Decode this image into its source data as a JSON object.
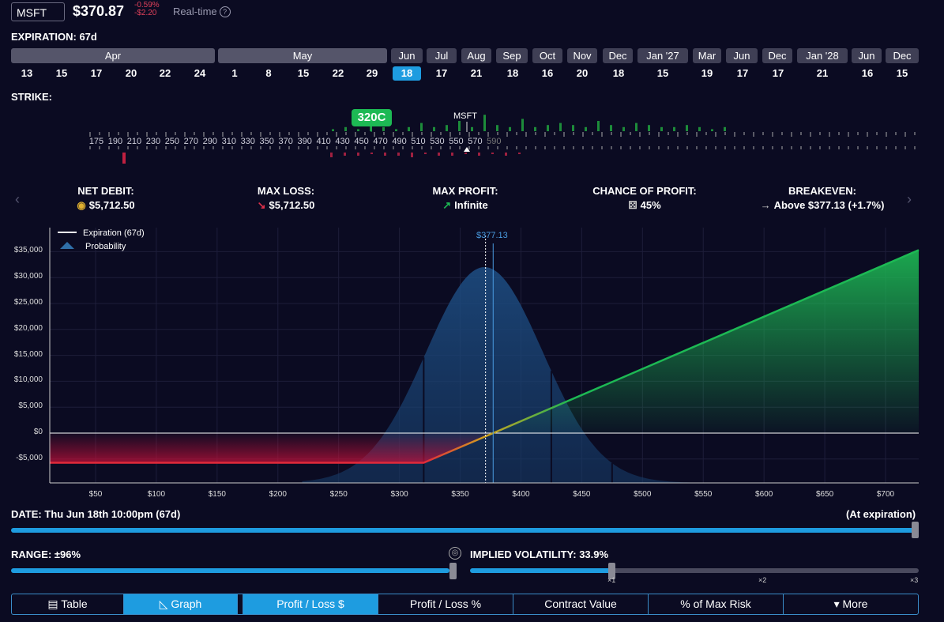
{
  "header": {
    "ticker": "MSFT",
    "price": "$370.87",
    "change_pct": "-0.59%",
    "change_abs": "-$2.20",
    "realtime": "Real-time",
    "help_icon": "?"
  },
  "expiration": {
    "label": "EXPIRATION:",
    "value": "67d"
  },
  "months": [
    "Apr",
    "May",
    "Jun",
    "Jul",
    "Aug",
    "Sep",
    "Oct",
    "Nov",
    "Dec",
    "Jan '27",
    "Mar",
    "Jun",
    "Dec",
    "Jan '28",
    "Jun",
    "Dec"
  ],
  "days": [
    "13",
    "15",
    "17",
    "20",
    "22",
    "24",
    "1",
    "8",
    "15",
    "22",
    "29",
    "18",
    "17",
    "21",
    "18",
    "16",
    "20",
    "18",
    "15",
    "19",
    "17",
    "17",
    "21",
    "16",
    "15"
  ],
  "selected_day": "18",
  "strike": {
    "label": "STRIKE:",
    "selected": "320C",
    "underlying": "MSFT",
    "ticks": [
      "175",
      "190",
      "210",
      "230",
      "250",
      "270",
      "290",
      "310",
      "330",
      "350",
      "370",
      "390",
      "410",
      "430",
      "450",
      "470",
      "490",
      "510",
      "530",
      "550",
      "570",
      "590"
    ]
  },
  "metrics": [
    {
      "label": "NET DEBIT:",
      "icon": "coins-icon",
      "glyph": "◉",
      "value": "$5,712.50"
    },
    {
      "label": "MAX LOSS:",
      "icon": "arrow-down-icon",
      "glyph": "↘",
      "value": "$5,712.50"
    },
    {
      "label": "MAX PROFIT:",
      "icon": "arrow-up-icon",
      "glyph": "↗",
      "value": "Infinite"
    },
    {
      "label": "CHANCE OF PROFIT:",
      "icon": "dice-icon",
      "glyph": "⚄",
      "value": "45%"
    },
    {
      "label": "BREAKEVEN:",
      "icon": "arrow-right-icon",
      "glyph": "→",
      "value": "Above $377.13 (+1.7%)"
    }
  ],
  "chart_data": {
    "type": "line",
    "legend": [
      "Expiration (67d)",
      "Probability"
    ],
    "breakeven_label": "$377.13",
    "ylabels": [
      "$35,000",
      "$30,000",
      "$25,000",
      "$20,000",
      "$15,000",
      "$10,000",
      "$5,000",
      "$0",
      "-$5,000"
    ],
    "xlabels": [
      "$50",
      "$100",
      "$150",
      "$200",
      "$250",
      "$300",
      "$350",
      "$400",
      "$450",
      "$500",
      "$550",
      "$600",
      "$650",
      "$700"
    ],
    "series": [
      {
        "name": "Expiration (67d)",
        "x": [
          0,
          320,
          377.13,
          730
        ],
        "y": [
          -5712.5,
          -5712.5,
          0,
          35300
        ]
      }
    ],
    "xlim": [
      30,
      730
    ],
    "ylim": [
      -10000,
      37500
    ]
  },
  "date": {
    "label": "DATE:",
    "value": "Thu Jun 18th 10:00pm (67d)",
    "right": "(At expiration)",
    "fill": 1.0
  },
  "range": {
    "label": "RANGE:",
    "value": "±96%"
  },
  "iv": {
    "label": "IMPLIED VOLATILITY:",
    "value": "33.9%",
    "marks": [
      "×1",
      "×2",
      "×3"
    ]
  },
  "buttons": [
    "Table",
    "Graph",
    "Profit / Loss $",
    "Profit / Loss %",
    "Contract Value",
    "% of Max Risk",
    "More"
  ],
  "colors": {
    "accent": "#1e9ce0",
    "profit": "#1db954",
    "loss": "#e0203a",
    "bg": "#0b0b22"
  }
}
